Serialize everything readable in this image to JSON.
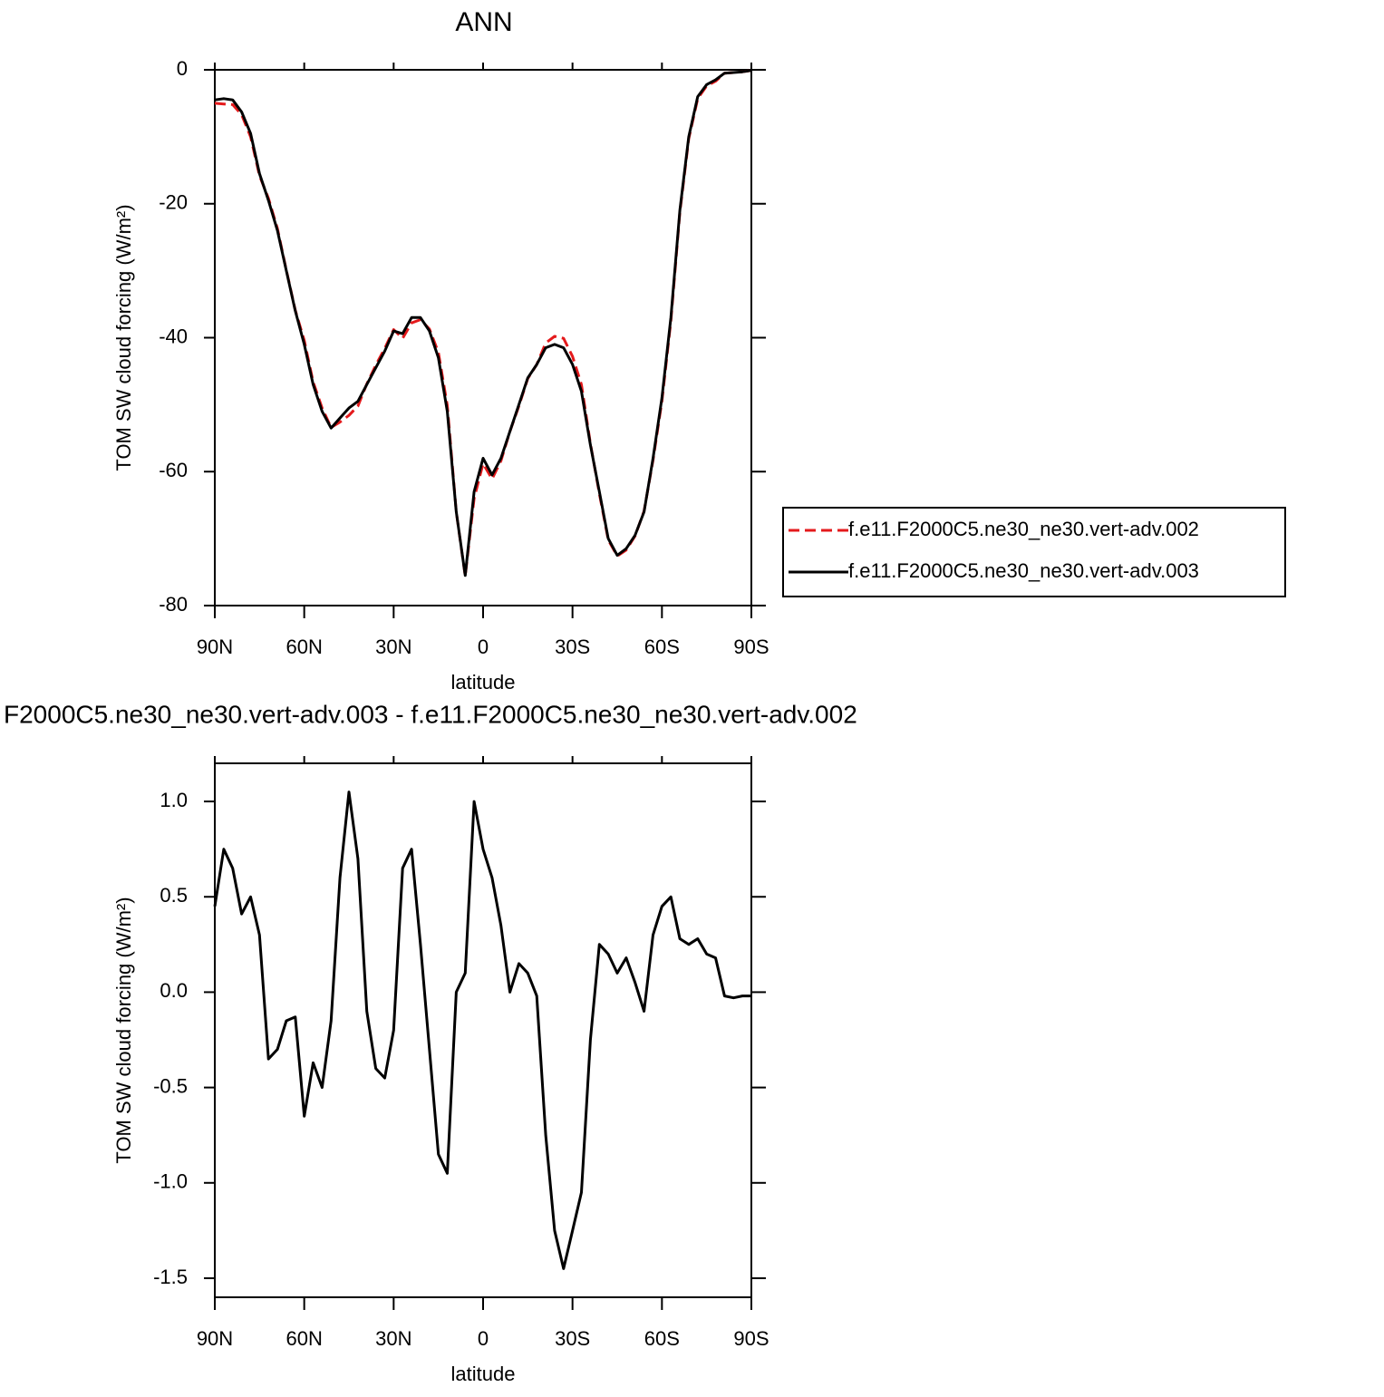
{
  "chart_data": [
    {
      "type": "line",
      "title": "ANN",
      "xlabel": "latitude",
      "ylabel": "TOM SW cloud forcing (W/m²)",
      "x": [
        90,
        87,
        84,
        81,
        78,
        75,
        72,
        69,
        66,
        63,
        60,
        57,
        54,
        51,
        48,
        45,
        42,
        39,
        36,
        33,
        30,
        27,
        24,
        21,
        18,
        15,
        12,
        9,
        6,
        3,
        0,
        -3,
        -6,
        -9,
        -12,
        -15,
        -18,
        -21,
        -24,
        -27,
        -30,
        -33,
        -36,
        -39,
        -42,
        -45,
        -48,
        -51,
        -54,
        -57,
        -60,
        -63,
        -66,
        -69,
        -72,
        -75,
        -78,
        -81,
        -84,
        -87,
        -90
      ],
      "xlim": [
        90,
        -90
      ],
      "xticks": [
        {
          "value": 90,
          "label": "90N"
        },
        {
          "value": 60,
          "label": "60N"
        },
        {
          "value": 30,
          "label": "30N"
        },
        0,
        {
          "value": -30,
          "label": "30S"
        },
        {
          "value": -60,
          "label": "60S"
        },
        {
          "value": -90,
          "label": "90S"
        }
      ],
      "ylim": [
        -80,
        0
      ],
      "yticks": [
        -80,
        -60,
        -40,
        -20,
        0
      ],
      "series": [
        {
          "name": "f.e11.F2000C5.ne30_ne30.vert-adv.002",
          "color": "#e41a1c",
          "dash": true,
          "values": [
            -5.0,
            -5.1,
            -5.2,
            -6.7,
            -10.0,
            -15.8,
            -19.2,
            -23.7,
            -29.9,
            -35.9,
            -40.4,
            -46.6,
            -50.5,
            -53.4,
            -52.6,
            -51.6,
            -50.2,
            -46.9,
            -44.1,
            -41.6,
            -38.8,
            -40.1,
            -37.8,
            -37.3,
            -38.7,
            -42.2,
            -50.1,
            -66.0,
            -75.6,
            -64.0,
            -58.8,
            -61.1,
            -58.4,
            -54.0,
            -50.2,
            -46.1,
            -44.0,
            -40.8,
            -39.8,
            -40.1,
            -42.8,
            -47.0,
            -55.8,
            -63.3,
            -70.2,
            -72.6,
            -71.7,
            -69.6,
            -65.9,
            -58.3,
            -49.5,
            -37.5,
            -21.3,
            -10.3,
            -4.3,
            -2.4,
            -1.7,
            -0.5,
            -0.4,
            -0.3,
            -0.1
          ]
        },
        {
          "name": "f.e11.F2000C5.ne30_ne30.vert-adv.003",
          "color": "#000000",
          "dash": false,
          "values": [
            -4.5,
            -4.3,
            -4.5,
            -6.3,
            -9.5,
            -15.5,
            -19.5,
            -24,
            -30,
            -36,
            -41,
            -47,
            -51,
            -53.5,
            -52,
            -50.5,
            -49.5,
            -47,
            -44.5,
            -42,
            -39,
            -39.4,
            -37,
            -37,
            -39,
            -43,
            -51,
            -66,
            -75.5,
            -63,
            -58,
            -60.5,
            -58,
            -54,
            -50,
            -46,
            -44,
            -41.5,
            -41,
            -41.5,
            -44,
            -48,
            -56,
            -63,
            -70,
            -72.5,
            -71.5,
            -69.5,
            -66,
            -58,
            -49,
            -37,
            -21,
            -10,
            -4,
            -2.2,
            -1.5,
            -0.5,
            -0.4,
            -0.3,
            -0.1
          ]
        }
      ]
    },
    {
      "type": "line",
      "title": "F2000C5.ne30_ne30.vert-adv.003 - f.e11.F2000C5.ne30_ne30.vert-adv.002",
      "xlabel": "latitude",
      "ylabel": "TOM SW cloud forcing (W/m²)",
      "x": [
        90,
        87,
        84,
        81,
        78,
        75,
        72,
        69,
        66,
        63,
        60,
        57,
        54,
        51,
        48,
        45,
        42,
        39,
        36,
        33,
        30,
        27,
        24,
        21,
        18,
        15,
        12,
        9,
        6,
        3,
        0,
        -3,
        -6,
        -9,
        -12,
        -15,
        -18,
        -21,
        -24,
        -27,
        -30,
        -33,
        -36,
        -39,
        -42,
        -45,
        -48,
        -51,
        -54,
        -57,
        -60,
        -63,
        -66,
        -69,
        -72,
        -75,
        -78,
        -81,
        -84,
        -87,
        -90
      ],
      "xlim": [
        90,
        -90
      ],
      "xticks": [
        {
          "value": 90,
          "label": "90N"
        },
        {
          "value": 60,
          "label": "60N"
        },
        {
          "value": 30,
          "label": "30N"
        },
        0,
        {
          "value": -30,
          "label": "30S"
        },
        {
          "value": -60,
          "label": "60S"
        },
        {
          "value": -90,
          "label": "90S"
        }
      ],
      "ylim": [
        -1.6,
        1.2
      ],
      "yticks": [
        -1.5,
        {
          "value": -1,
          "label": "-1.0"
        },
        -0.5,
        {
          "value": 0,
          "label": "0.0"
        },
        0.5,
        {
          "value": 1,
          "label": "1.0"
        }
      ],
      "series": [
        {
          "color": "#000000",
          "dash": false,
          "values": [
            0.45,
            0.75,
            0.65,
            0.41,
            0.5,
            0.3,
            -0.35,
            -0.3,
            -0.15,
            -0.13,
            -0.65,
            -0.37,
            -0.5,
            -0.15,
            0.6,
            1.05,
            0.7,
            -0.1,
            -0.4,
            -0.45,
            -0.2,
            0.65,
            0.75,
            0.25,
            -0.3,
            -0.85,
            -0.95,
            0.0,
            0.1,
            1.0,
            0.75,
            0.6,
            0.35,
            0.0,
            0.15,
            0.1,
            -0.02,
            -0.75,
            -1.25,
            -1.45,
            -1.25,
            -1.05,
            -0.25,
            0.25,
            0.2,
            0.1,
            0.18,
            0.05,
            -0.1,
            0.3,
            0.45,
            0.5,
            0.28,
            0.25,
            0.28,
            0.2,
            0.18,
            -0.02,
            -0.03,
            -0.02,
            -0.02
          ]
        }
      ]
    }
  ]
}
